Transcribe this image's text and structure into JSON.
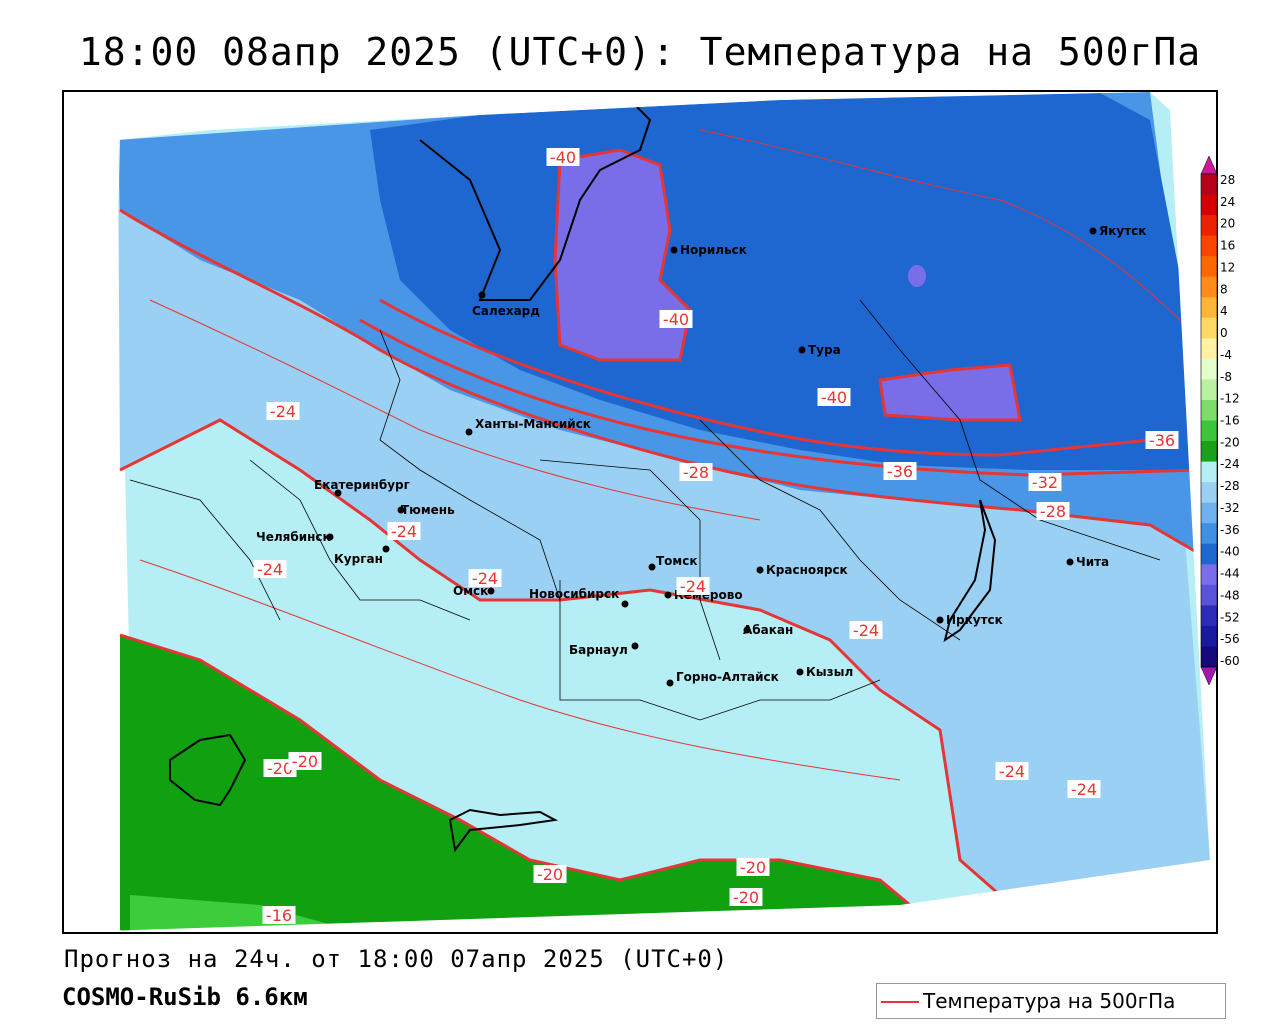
{
  "title": "18:00 08апр 2025 (UTC+0): Температура на 500гПа",
  "forecast_text": "Прогноз на 24ч. от 18:00 07апр 2025 (UTC+0)",
  "model_text": "COSMO-RuSib 6.6км",
  "legend": {
    "label": "Температура на 500гПа",
    "line_color": "#e53535"
  },
  "colorbar": {
    "ticks": [
      "28",
      "24",
      "20",
      "16",
      "12",
      "8",
      "4",
      "0",
      "-4",
      "-8",
      "-12",
      "-16",
      "-20",
      "-24",
      "-28",
      "-32",
      "-36",
      "-40",
      "-44",
      "-48",
      "-52",
      "-56",
      "-60"
    ],
    "colors": [
      "#b8001a",
      "#d40000",
      "#ec2200",
      "#ff4400",
      "#ff6600",
      "#ff8c1a",
      "#ffb638",
      "#ffd966",
      "#fff2a6",
      "#e5ffcc",
      "#b8f2a0",
      "#7fdc6a",
      "#3cc43c",
      "#1aa01a",
      "#b6eef6",
      "#9ad0f4",
      "#6fb2ee",
      "#3f8fe3",
      "#1e66d0",
      "#7a6ee8",
      "#5a52d8",
      "#2c2cb8",
      "#1a1aa0",
      "#140a7a"
    ],
    "top_arrow_color": "#cc1a9a",
    "bottom_arrow_color": "#a01ab0"
  },
  "fill_colors": {
    "warm_green": "#10a010",
    "light_green": "#3ccc3c",
    "pale_cyan": "#b6eef6",
    "light_blue": "#9ad0f4",
    "mid_blue": "#4a96e6",
    "deep_blue": "#1e66d0",
    "violet": "#7a6ee8"
  },
  "cities": [
    {
      "name": "Норильск"
    },
    {
      "name": "Салехард"
    },
    {
      "name": "Тура"
    },
    {
      "name": "Якутск"
    },
    {
      "name": "Ханты-Мансийск"
    },
    {
      "name": "Екатеринбург"
    },
    {
      "name": "Тюмень"
    },
    {
      "name": "Челябинск"
    },
    {
      "name": "Курган"
    },
    {
      "name": "Омск"
    },
    {
      "name": "Новосибирск"
    },
    {
      "name": "Томск"
    },
    {
      "name": "Кемерово"
    },
    {
      "name": "Красноярск"
    },
    {
      "name": "Абакан"
    },
    {
      "name": "Барнаул"
    },
    {
      "name": "Горно-Алтайск"
    },
    {
      "name": "Кызыл"
    },
    {
      "name": "Иркутск"
    },
    {
      "name": "Чита"
    }
  ],
  "contour_labels": [
    "-40",
    "-40",
    "-40",
    "-36",
    "-36",
    "-32",
    "-28",
    "-28",
    "-24",
    "-24",
    "-24",
    "-24",
    "-24",
    "-24",
    "-24",
    "-24",
    "-20",
    "-20",
    "-20",
    "-20",
    "-20",
    "-16"
  ]
}
